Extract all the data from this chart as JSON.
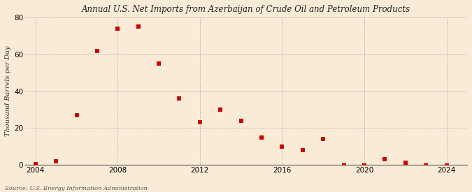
{
  "title": "Annual U.S. Net Imports from Azerbaijan of Crude Oil and Petroleum Products",
  "ylabel": "Thousand Barrels per Day",
  "source": "Source: U.S. Energy Information Administration",
  "background_color": "#faebd7",
  "years": [
    2004,
    2005,
    2006,
    2007,
    2008,
    2009,
    2010,
    2011,
    2012,
    2013,
    2014,
    2015,
    2016,
    2017,
    2018,
    2019,
    2020,
    2021,
    2022,
    2023,
    2024
  ],
  "values": [
    0.5,
    2.0,
    27.0,
    62.0,
    74.0,
    75.0,
    55.0,
    36.0,
    23.0,
    30.0,
    24.0,
    15.0,
    10.0,
    8.0,
    14.0,
    -0.5,
    -0.5,
    3.0,
    1.0,
    -0.5,
    -0.5
  ],
  "marker_color": "#cc0000",
  "marker_size": 5,
  "grid_color": "#b0b0b0",
  "ylim": [
    0,
    80
  ],
  "yticks": [
    0,
    20,
    40,
    60,
    80
  ],
  "xlim": [
    2003.5,
    2025.0
  ],
  "xticks": [
    2004,
    2008,
    2012,
    2016,
    2020,
    2024
  ]
}
